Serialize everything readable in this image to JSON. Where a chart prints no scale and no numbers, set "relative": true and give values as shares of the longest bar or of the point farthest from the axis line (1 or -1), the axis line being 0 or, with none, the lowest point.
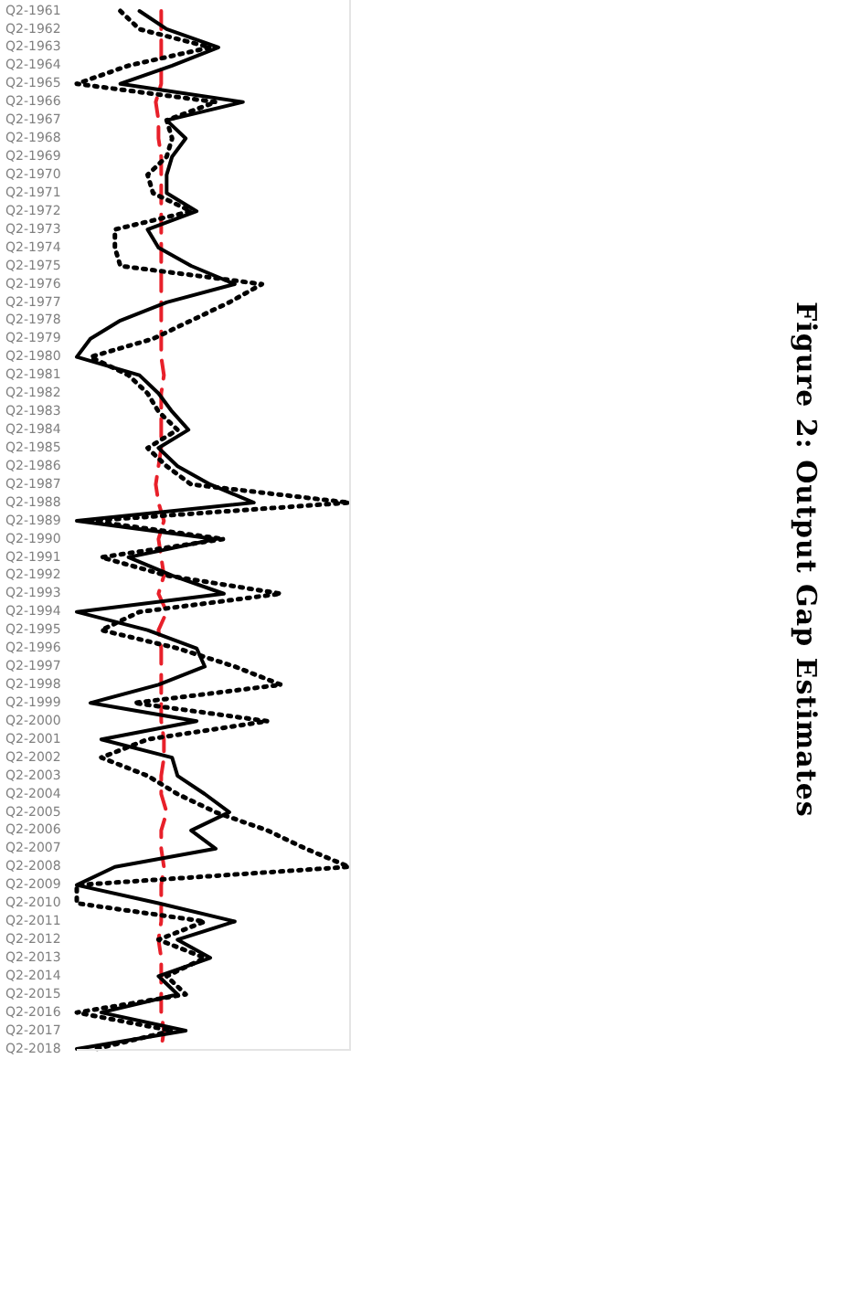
{
  "chart_data": {
    "type": "line",
    "title": "Figure 2: Output Gap Estimates",
    "orientation": "horizontal",
    "relative": true,
    "grid": false,
    "legend": false,
    "categories": [
      "Q2-1961",
      "Q2-1962",
      "Q2-1963",
      "Q2-1964",
      "Q2-1965",
      "Q2-1966",
      "Q2-1967",
      "Q2-1968",
      "Q2-1969",
      "Q2-1970",
      "Q2-1971",
      "Q2-1972",
      "Q2-1973",
      "Q2-1974",
      "Q2-1975",
      "Q2-1976",
      "Q2-1977",
      "Q2-1978",
      "Q2-1979",
      "Q2-1980",
      "Q2-1981",
      "Q2-1982",
      "Q2-1983",
      "Q2-1984",
      "Q2-1985",
      "Q2-1986",
      "Q2-1987",
      "Q2-1988",
      "Q2-1989",
      "Q2-1990",
      "Q2-1991",
      "Q2-1992",
      "Q2-1993",
      "Q2-1994",
      "Q2-1995",
      "Q2-1996",
      "Q2-1997",
      "Q2-1998",
      "Q2-1999",
      "Q2-2000",
      "Q2-2001",
      "Q2-2002",
      "Q2-2003",
      "Q2-2004",
      "Q2-2005",
      "Q2-2006",
      "Q2-2007",
      "Q2-2008",
      "Q2-2009",
      "Q2-2010",
      "Q2-2011",
      "Q2-2012",
      "Q2-2013",
      "Q2-2014",
      "Q2-2015",
      "Q2-2016",
      "Q2-2017",
      "Q2-2018"
    ],
    "series": [
      {
        "color": "#000000",
        "line_style": "solid",
        "values": [
          0.23,
          0.33,
          0.52,
          0.35,
          0.16,
          0.61,
          0.33,
          0.4,
          0.35,
          0.33,
          0.33,
          0.44,
          0.26,
          0.3,
          0.42,
          0.58,
          0.33,
          0.16,
          0.05,
          0,
          0.23,
          0.3,
          0.35,
          0.41,
          0.3,
          0.37,
          0.49,
          0.65,
          0,
          0.51,
          0.19,
          0.35,
          0.54,
          0,
          0.26,
          0.44,
          0.47,
          0.3,
          0.05,
          0.44,
          0.09,
          0.35,
          0.37,
          0.47,
          0.56,
          0.42,
          0.51,
          0.14,
          0,
          0.3,
          0.58,
          0.37,
          0.49,
          0.3,
          0.37,
          0.09,
          0.4,
          0
        ]
      },
      {
        "color": "#000000",
        "line_style": "dotted",
        "values": [
          0.16,
          0.23,
          0.49,
          0.19,
          0,
          0.51,
          0.33,
          0.35,
          0.33,
          0.26,
          0.28,
          0.42,
          0.14,
          0.14,
          0.16,
          0.68,
          0.56,
          0.42,
          0.28,
          0.05,
          0.19,
          0.26,
          0.3,
          0.37,
          0.26,
          0.33,
          0.42,
          1,
          0.05,
          0.54,
          0.09,
          0.33,
          0.75,
          0.23,
          0.09,
          0.37,
          0.58,
          0.75,
          0.21,
          0.7,
          0.26,
          0.09,
          0.26,
          0.37,
          0.51,
          0.7,
          0.84,
          1,
          0,
          0,
          0.47,
          0.3,
          0.47,
          0.33,
          0.4,
          0,
          0.35,
          0.07
        ]
      },
      {
        "color": "#e8202a",
        "line_style": "dashed",
        "values": [
          0.31,
          0.31,
          0.31,
          0.31,
          0.31,
          0.29,
          0.3,
          0.3,
          0.31,
          0.31,
          0.31,
          0.31,
          0.31,
          0.31,
          0.31,
          0.31,
          0.31,
          0.31,
          0.31,
          0.31,
          0.32,
          0.31,
          0.31,
          0.31,
          0.31,
          0.3,
          0.29,
          0.3,
          0.32,
          0.3,
          0.31,
          0.32,
          0.3,
          0.33,
          0.3,
          0.31,
          0.31,
          0.31,
          0.31,
          0.31,
          0.32,
          0.32,
          0.31,
          0.31,
          0.33,
          0.31,
          0.31,
          0.32,
          0.31,
          0.31,
          0.31,
          0.3,
          0.31,
          0.31,
          0.31,
          0.31,
          0.32,
          0.31
        ]
      }
    ]
  }
}
